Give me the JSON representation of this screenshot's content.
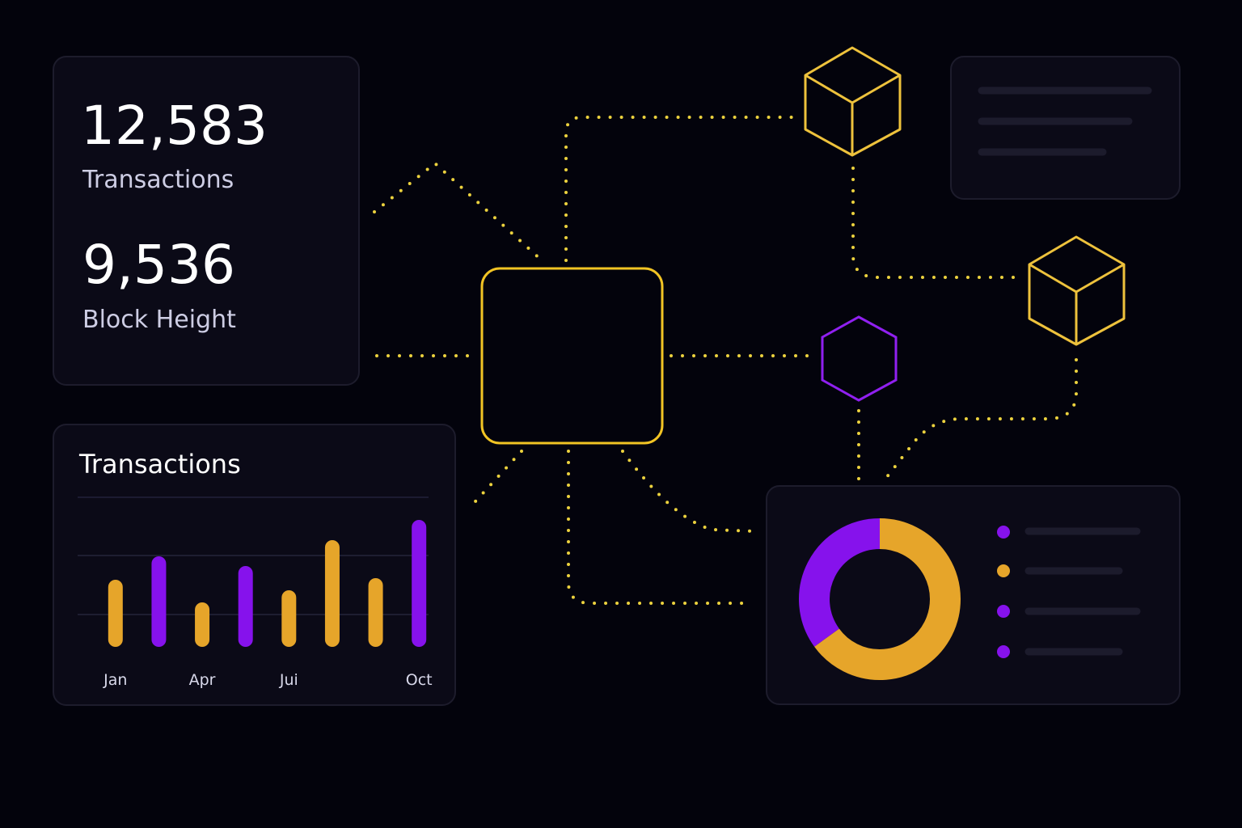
{
  "stats": [
    {
      "value": "12,583",
      "label": "Transactions"
    },
    {
      "value": "9,536",
      "label": "Block Height"
    }
  ],
  "chart_data": [
    {
      "type": "bar",
      "title": "Transactions",
      "categories": [
        "Jan",
        null,
        "Apr",
        null,
        "Jui",
        null,
        null,
        "Oct"
      ],
      "values": [
        83,
        112,
        55,
        100,
        70,
        132,
        85,
        157
      ],
      "colors": [
        "#e6a52a",
        "#8612ec",
        "#e6a52a",
        "#8612ec",
        "#e6a52a",
        "#e6a52a",
        "#e6a52a",
        "#8612ec"
      ],
      "ylim": [
        0,
        160
      ],
      "yticks": [
        40,
        113
      ],
      "grid": true
    },
    {
      "type": "pie",
      "values": [
        65,
        35
      ],
      "colors": [
        "#e6a52a",
        "#8612ec"
      ]
    }
  ]
}
